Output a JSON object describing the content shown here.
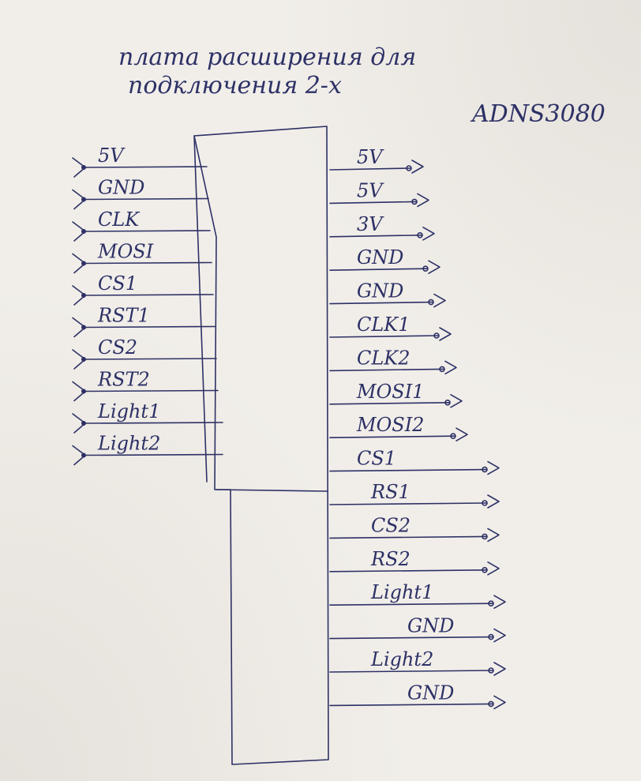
{
  "title_line1": "плата расширения для",
  "title_line2": "подключения 2-х",
  "module_label": "ADNS3080",
  "left_pins": [
    "5V",
    "GND",
    "CLK",
    "MOSI",
    "CS1",
    "RST1",
    "CS2",
    "RST2",
    "Light1",
    "Light2"
  ],
  "right_pins": [
    "5V",
    "5V",
    "3V",
    "GND",
    "GND",
    "CLK1",
    "CLK2",
    "MOSI1",
    "MOSI2",
    "CS1",
    "RS1",
    "CS2",
    "RS2",
    "Light1",
    "GND",
    "Light2",
    "GND"
  ],
  "ink_color": "#2d3166",
  "paper_color": "#f1eee9"
}
